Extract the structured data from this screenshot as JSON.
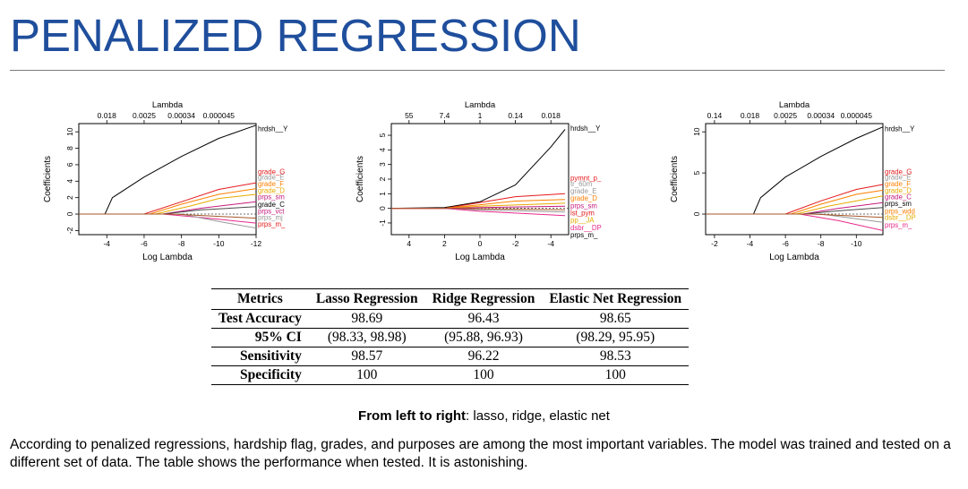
{
  "slide": {
    "title": "PENALIZED REGRESSION",
    "caption_bold": "From left to right",
    "caption_rest": ": lasso, ridge, elastic net",
    "summary": "According to penalized regressions, hardship flag, grades, and purposes are among the most important variables. The model was trained and tested on a different set of data. The table shows the performance when tested. It is astonishing."
  },
  "table": {
    "headers": [
      "Metrics",
      "Lasso Regression",
      "Ridge Regression",
      "Elastic Net Regression"
    ],
    "rows": [
      {
        "label": "Test Accuracy",
        "values": [
          "98.69",
          "96.43",
          "98.65"
        ]
      },
      {
        "label": "95% CI",
        "values": [
          "(98.33, 98.98)",
          "(95.88, 96.93)",
          "(98.29, 95.95)"
        ]
      },
      {
        "label": "Sensitivity",
        "values": [
          "98.57",
          "96.22",
          "98.53"
        ]
      },
      {
        "label": "Specificity",
        "values": [
          "100",
          "100",
          "100"
        ]
      }
    ]
  },
  "chart_data": [
    {
      "type": "line",
      "xlabel": "Log Lambda",
      "ylabel": "Coefficients",
      "top_axis_label": "Lambda",
      "xlim": [
        -2.5,
        -12
      ],
      "ylim": [
        -2.5,
        11
      ],
      "x_ticks": [
        -4,
        -6,
        -8,
        -10,
        -12
      ],
      "y_ticks": [
        -2,
        0,
        2,
        4,
        6,
        8,
        10
      ],
      "top_ticks": [
        {
          "x": -4,
          "label": "0.018"
        },
        {
          "x": -6,
          "label": "0.0025"
        },
        {
          "x": -8,
          "label": "0.00034"
        },
        {
          "x": -10,
          "label": "0.000045"
        }
      ],
      "labels": [
        {
          "text": "hrdsh__Y",
          "color": "#000000",
          "y": 10.4
        },
        {
          "text": "grade_G",
          "color": "#e41a1c",
          "y": 5.2
        },
        {
          "text": "grade_E",
          "color": "#999999",
          "y": 4.5
        },
        {
          "text": "grade_F",
          "color": "#ff7f00",
          "y": 3.7
        },
        {
          "text": "grade_D",
          "color": "#e6ab02",
          "y": 2.9
        },
        {
          "text": "prps_sm",
          "color": "#c51b7d",
          "y": 2.1
        },
        {
          "text": "grade_C",
          "color": "#000000",
          "y": 1.2
        },
        {
          "text": "prps_vct",
          "color": "#c51b7d",
          "y": 0.4
        },
        {
          "text": "prps_mj",
          "color": "#999999",
          "y": -0.4
        },
        {
          "text": "prps_m_",
          "color": "#e41a1c",
          "y": -1.2
        }
      ],
      "series": [
        {
          "color": "#000000",
          "points": [
            [
              -2.5,
              0
            ],
            [
              -3.9,
              0
            ],
            [
              -4.3,
              2
            ],
            [
              -6,
              4.5
            ],
            [
              -8,
              7
            ],
            [
              -10,
              9.2
            ],
            [
              -12,
              10.8
            ]
          ]
        },
        {
          "color": "#e41a1c",
          "points": [
            [
              -2.5,
              0
            ],
            [
              -6,
              0
            ],
            [
              -8,
              1.5
            ],
            [
              -10,
              3
            ],
            [
              -12,
              3.8
            ]
          ]
        },
        {
          "color": "#ff7f00",
          "points": [
            [
              -2.5,
              0
            ],
            [
              -6.3,
              0
            ],
            [
              -8,
              1.2
            ],
            [
              -10,
              2.4
            ],
            [
              -12,
              3.1
            ]
          ]
        },
        {
          "color": "#e6ab02",
          "points": [
            [
              -2.5,
              0
            ],
            [
              -6.6,
              0
            ],
            [
              -8.5,
              1
            ],
            [
              -10,
              1.9
            ],
            [
              -12,
              2.4
            ]
          ]
        },
        {
          "color": "#c51b7d",
          "points": [
            [
              -2.5,
              0
            ],
            [
              -7,
              0
            ],
            [
              -9,
              0.7
            ],
            [
              -12,
              1.5
            ]
          ]
        },
        {
          "color": "#4a4a4a",
          "points": [
            [
              -2.5,
              0
            ],
            [
              -7,
              0
            ],
            [
              -9,
              0.5
            ],
            [
              -12,
              0.9
            ]
          ]
        },
        {
          "color": "#e7298a",
          "points": [
            [
              -2.5,
              0
            ],
            [
              -7,
              0
            ],
            [
              -9,
              -0.4
            ],
            [
              -12,
              -1.1
            ]
          ]
        },
        {
          "color": "#999999",
          "points": [
            [
              -2.5,
              0
            ],
            [
              -8,
              0
            ],
            [
              -10,
              -0.9
            ],
            [
              -12,
              -1.7
            ]
          ]
        },
        {
          "color": "#a65628",
          "points": [
            [
              -2.5,
              0
            ],
            [
              -7.5,
              0
            ],
            [
              -12,
              -0.5
            ]
          ]
        }
      ]
    },
    {
      "type": "line",
      "xlabel": "Log Lambda",
      "ylabel": "Coefficients",
      "top_axis_label": "Lambda",
      "xlim": [
        5,
        -5
      ],
      "ylim": [
        -1.8,
        5.8
      ],
      "x_ticks": [
        4,
        2,
        0,
        -2,
        -4
      ],
      "y_ticks": [
        -1,
        0,
        1,
        2,
        3,
        4,
        5
      ],
      "top_ticks": [
        {
          "x": 4,
          "label": "55"
        },
        {
          "x": 2,
          "label": "7.4"
        },
        {
          "x": 0,
          "label": "1"
        },
        {
          "x": -2,
          "label": "0.14"
        },
        {
          "x": -4,
          "label": "0.018"
        }
      ],
      "labels": [
        {
          "text": "hrdsh__Y",
          "color": "#000000",
          "y": 5.5
        },
        {
          "text": "pymnt_p_",
          "color": "#e41a1c",
          "y": 2.1
        },
        {
          "text": "tr_60m",
          "color": "#999999",
          "y": 1.7
        },
        {
          "text": "grade_E",
          "color": "#999999",
          "y": 1.2
        },
        {
          "text": "grade_D",
          "color": "#ff7f00",
          "y": 0.7
        },
        {
          "text": "prps_sm",
          "color": "#c51b7d",
          "y": 0.2
        },
        {
          "text": "lst_pym",
          "color": "#e41a1c",
          "y": -0.3
        },
        {
          "text": "pp__JA",
          "color": "#e6ab02",
          "y": -0.8
        },
        {
          "text": "dsbr__DP",
          "color": "#e7298a",
          "y": -1.3
        },
        {
          "text": "prps_m_",
          "color": "#000000",
          "y": -1.8
        }
      ],
      "series": [
        {
          "color": "#000000",
          "points": [
            [
              5,
              0
            ],
            [
              2,
              0.05
            ],
            [
              0,
              0.45
            ],
            [
              -2,
              1.6
            ],
            [
              -4,
              4.2
            ],
            [
              -4.8,
              5.4
            ]
          ]
        },
        {
          "color": "#e41a1c",
          "points": [
            [
              5,
              0
            ],
            [
              2,
              0
            ],
            [
              0,
              0.4
            ],
            [
              -2,
              0.8
            ],
            [
              -4.8,
              1
            ]
          ]
        },
        {
          "color": "#ff7f00",
          "points": [
            [
              5,
              0
            ],
            [
              2,
              0
            ],
            [
              0,
              0.25
            ],
            [
              -2,
              0.5
            ],
            [
              -4.8,
              0.6
            ]
          ]
        },
        {
          "color": "#e6ab02",
          "points": [
            [
              5,
              0
            ],
            [
              2,
              0
            ],
            [
              0,
              0.15
            ],
            [
              -4.8,
              0.35
            ]
          ]
        },
        {
          "color": "#c51b7d",
          "points": [
            [
              5,
              0
            ],
            [
              2,
              0
            ],
            [
              0,
              0.05
            ],
            [
              -4.8,
              0.15
            ]
          ]
        },
        {
          "color": "#999999",
          "points": [
            [
              5,
              0
            ],
            [
              2,
              0
            ],
            [
              0,
              -0.1
            ],
            [
              -4.8,
              -0.25
            ]
          ]
        },
        {
          "color": "#e7298a",
          "points": [
            [
              5,
              0
            ],
            [
              2,
              0
            ],
            [
              0,
              -0.2
            ],
            [
              -4.8,
              -0.5
            ]
          ]
        },
        {
          "color": "#a65628",
          "points": [
            [
              5,
              0
            ],
            [
              2,
              0
            ],
            [
              -4.8,
              -0.1
            ]
          ]
        }
      ]
    },
    {
      "type": "line",
      "xlabel": "Log Lambda",
      "ylabel": "Coefficients",
      "top_axis_label": "Lambda",
      "xlim": [
        -1.5,
        -11.5
      ],
      "ylim": [
        -2.5,
        11
      ],
      "x_ticks": [
        -2,
        -4,
        -6,
        -8,
        -10
      ],
      "y_ticks": [
        0,
        5,
        10
      ],
      "top_ticks": [
        {
          "x": -2,
          "label": "0.14"
        },
        {
          "x": -4,
          "label": "0.018"
        },
        {
          "x": -6,
          "label": "0.0025"
        },
        {
          "x": -8,
          "label": "0.00034"
        },
        {
          "x": -10,
          "label": "0.000045"
        }
      ],
      "labels": [
        {
          "text": "hrdsh__Y",
          "color": "#000000",
          "y": 10.4
        },
        {
          "text": "grade_G",
          "color": "#e41a1c",
          "y": 5.2
        },
        {
          "text": "grade_E",
          "color": "#999999",
          "y": 4.5
        },
        {
          "text": "grade_F",
          "color": "#ff7f00",
          "y": 3.7
        },
        {
          "text": "grade_D",
          "color": "#e6ab02",
          "y": 2.9
        },
        {
          "text": "grade_C",
          "color": "#c51b7d",
          "y": 2.1
        },
        {
          "text": "prps_sm",
          "color": "#000000",
          "y": 1.3
        },
        {
          "text": "prps_wdd",
          "color": "#ff7f00",
          "y": 0.4
        },
        {
          "text": "dsbr__DP",
          "color": "#e6ab02",
          "y": -0.4
        },
        {
          "text": "prps_m_",
          "color": "#e7298a",
          "y": -1.3
        }
      ],
      "series": [
        {
          "color": "#000000",
          "points": [
            [
              -1.5,
              0
            ],
            [
              -4.2,
              0
            ],
            [
              -4.6,
              2
            ],
            [
              -6,
              4.5
            ],
            [
              -8,
              7
            ],
            [
              -10,
              9.2
            ],
            [
              -11.5,
              10.6
            ]
          ]
        },
        {
          "color": "#e41a1c",
          "points": [
            [
              -1.5,
              0
            ],
            [
              -6,
              0
            ],
            [
              -8,
              1.6
            ],
            [
              -10,
              3
            ],
            [
              -11.5,
              3.6
            ]
          ]
        },
        {
          "color": "#ff7f00",
          "points": [
            [
              -1.5,
              0
            ],
            [
              -6.3,
              0
            ],
            [
              -8,
              1.2
            ],
            [
              -10,
              2.4
            ],
            [
              -11.5,
              2.9
            ]
          ]
        },
        {
          "color": "#e6ab02",
          "points": [
            [
              -1.5,
              0
            ],
            [
              -6.6,
              0
            ],
            [
              -8.5,
              1
            ],
            [
              -11.5,
              2.2
            ]
          ]
        },
        {
          "color": "#c51b7d",
          "points": [
            [
              -1.5,
              0
            ],
            [
              -7,
              0
            ],
            [
              -9,
              0.7
            ],
            [
              -11.5,
              1.4
            ]
          ]
        },
        {
          "color": "#4a4a4a",
          "points": [
            [
              -1.5,
              0
            ],
            [
              -7,
              0
            ],
            [
              -9,
              0.4
            ],
            [
              -11.5,
              0.8
            ]
          ]
        },
        {
          "color": "#e7298a",
          "points": [
            [
              -1.5,
              0
            ],
            [
              -6.8,
              0
            ],
            [
              -9,
              -0.8
            ],
            [
              -11.5,
              -2
            ]
          ]
        },
        {
          "color": "#999999",
          "points": [
            [
              -1.5,
              0
            ],
            [
              -8,
              0
            ],
            [
              -11.5,
              -1
            ]
          ]
        },
        {
          "color": "#a65628",
          "points": [
            [
              -1.5,
              0
            ],
            [
              -7.5,
              0
            ],
            [
              -11.5,
              -0.4
            ]
          ]
        }
      ]
    }
  ]
}
